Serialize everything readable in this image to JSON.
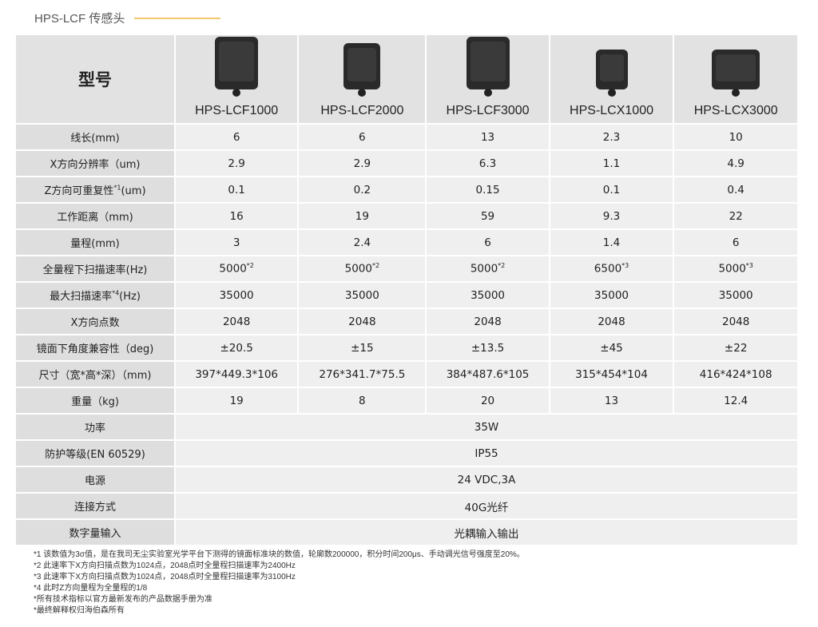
{
  "title": "HPS-LCF 传感头",
  "accent": "#f0c96a",
  "header_label": "型号",
  "models": [
    "HPS-LCF1000",
    "HPS-LCF2000",
    "HPS-LCF3000",
    "HPS-LCX1000",
    "HPS-LCX3000"
  ],
  "rows": [
    {
      "label": "线长(mm)",
      "values": [
        "6",
        "6",
        "13",
        "2.3",
        "10"
      ]
    },
    {
      "label": "X方向分辨率（um)",
      "values": [
        "2.9",
        "2.9",
        "6.3",
        "1.1",
        "4.9"
      ]
    },
    {
      "label": "Z方向可重复性",
      "label_sup": "*1",
      "label_suffix": "(um)",
      "values": [
        "0.1",
        "0.2",
        "0.15",
        "0.1",
        "0.4"
      ]
    },
    {
      "label": "工作距离（mm)",
      "values": [
        "16",
        "19",
        "59",
        "9.3",
        "22"
      ]
    },
    {
      "label": "量程(mm)",
      "values": [
        "3",
        "2.4",
        "6",
        "1.4",
        "6"
      ]
    },
    {
      "label": "全量程下扫描速率(Hz)",
      "values": [
        "5000",
        "5000",
        "5000",
        "6500",
        "5000"
      ],
      "sups": [
        "*2",
        "*2",
        "*2",
        "*3",
        "*3"
      ]
    },
    {
      "label": "最大扫描速率",
      "label_sup": "*4",
      "label_suffix": "(Hz)",
      "values": [
        "35000",
        "35000",
        "35000",
        "35000",
        "35000"
      ]
    },
    {
      "label": "X方向点数",
      "values": [
        "2048",
        "2048",
        "2048",
        "2048",
        "2048"
      ]
    },
    {
      "label": "镜面下角度兼容性（deg)",
      "values": [
        "±20.5",
        "±15",
        "±13.5",
        "±45",
        "±22"
      ]
    },
    {
      "label": "尺寸（宽*高*深）（mm)",
      "values": [
        "397*449.3*106",
        "276*341.7*75.5",
        "384*487.6*105",
        "315*454*104",
        "416*424*108"
      ]
    },
    {
      "label": "重量（kg)",
      "values": [
        "19",
        "8",
        "20",
        "13",
        "12.4"
      ]
    }
  ],
  "merged_rows": [
    {
      "label": "功率",
      "value": "35W"
    },
    {
      "label": "防护等级(EN 60529)",
      "value": "IP55"
    },
    {
      "label": "电源",
      "value": "24 VDC,3A"
    },
    {
      "label": "连接方式",
      "value": "40G光纤"
    },
    {
      "label": "数字量输入",
      "value": "光耦输入输出"
    }
  ],
  "notes": [
    "*1 该数值为3σ值，是在我司无尘实验室光学平台下测得的镜面标准块的数值，轮廓数200000，积分时间200μs、手动调光信号强度至20%。",
    "*2 此速率下X方向扫描点数为1024点，2048点时全量程扫描速率为2400Hz",
    "*3 此速率下X方向扫描点数为1024点，2048点时全量程扫描速率为3100Hz",
    "*4 此时Z方向量程为全量程的1/8",
    "*所有技术指标以官方最新发布的产品数据手册为准",
    "*最终解释权归海伯森所有"
  ]
}
